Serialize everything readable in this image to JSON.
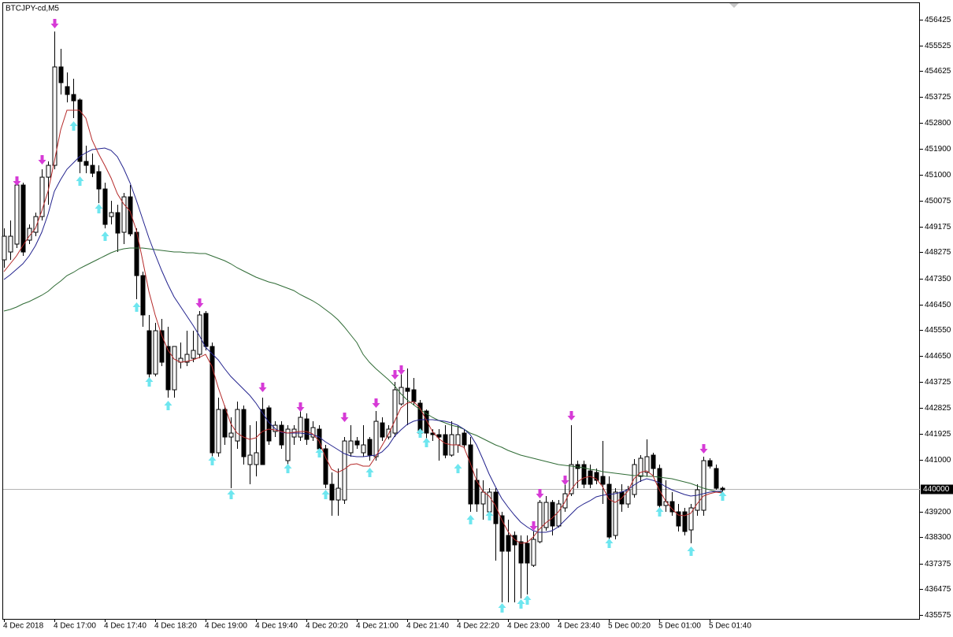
{
  "chart_data": {
    "type": "candlestick",
    "title": "BTCJPY-cd,M5",
    "categories": [
      "4 Dec 2018",
      null,
      null,
      null,
      null,
      null,
      null,
      null,
      "4 Dec 17:00",
      null,
      null,
      null,
      null,
      null,
      null,
      null,
      "4 Dec 17:40",
      null,
      null,
      null,
      null,
      null,
      null,
      null,
      "4 Dec 18:20",
      null,
      null,
      null,
      null,
      null,
      null,
      null,
      "4 Dec 19:00",
      null,
      null,
      null,
      null,
      null,
      null,
      null,
      "4 Dec 19:40",
      null,
      null,
      null,
      null,
      null,
      null,
      null,
      "4 Dec 20:20",
      null,
      null,
      null,
      null,
      null,
      null,
      null,
      "4 Dec 21:00",
      null,
      null,
      null,
      null,
      null,
      null,
      null,
      "4 Dec 21:40",
      null,
      null,
      null,
      null,
      null,
      null,
      null,
      "4 Dec 22:20",
      null,
      null,
      null,
      null,
      null,
      null,
      null,
      "4 Dec 23:00",
      null,
      null,
      null,
      null,
      null,
      null,
      null,
      "4 Dec 23:40",
      null,
      null,
      null,
      null,
      null,
      null,
      null,
      "5 Dec 00:20",
      null,
      null,
      null,
      null,
      null,
      null,
      null,
      "5 Dec 01:00",
      null,
      null,
      null,
      null,
      null,
      null,
      null,
      "5 Dec 01:40",
      null,
      null
    ],
    "open": [
      448013,
      448288,
      448564,
      450633,
      448702,
      448978,
      449529,
      450908,
      451322,
      454770,
      454080,
      453804,
      453612,
      451460,
      451322,
      451102,
      450495,
      449529,
      449667,
      448978,
      450219,
      448978,
      447461,
      445530,
      444013,
      445530,
      444979,
      443462,
      444427,
      444427,
      444565,
      444703,
      446137,
      444979,
      441256,
      442772,
      441807,
      441669,
      442772,
      440842,
      440842,
      442772,
      442828,
      442000,
      442220,
      440980,
      441807,
      441807,
      442441,
      441807,
      442083,
      441394,
      440152,
      439601,
      439601,
      441256,
      441669,
      441256,
      441724,
      441118,
      442303,
      441807,
      441945,
      442965,
      443517,
      443462,
      442993,
      442717,
      441945,
      441890,
      441890,
      441173,
      441531,
      441945,
      441531,
      440290,
      439463,
      439187,
      439877,
      439049,
      438360,
      438360,
      438139,
      438084,
      437312,
      438139,
      438636,
      439518,
      438691,
      439325,
      439821,
      440842,
      440842,
      440621,
      440566,
      440428,
      440152,
      438360,
      439877,
      439463,
      439794,
      440428,
      440566,
      441173,
      440704,
      439408,
      439546,
      439187,
      439187,
      438553,
      439242,
      439242,
      440980,
      440704,
      440014
    ],
    "high": [
      449116,
      449392,
      450908,
      450715,
      449254,
      449667,
      451184,
      451460,
      456011,
      455404,
      454577,
      454356,
      453667,
      452012,
      451736,
      451322,
      450715,
      450081,
      449943,
      450357,
      450633,
      449116,
      447599,
      446082,
      445806,
      445944,
      445668,
      444841,
      445117,
      445530,
      445530,
      446220,
      446220,
      445117,
      443186,
      442910,
      442496,
      443048,
      442910,
      442220,
      442358,
      443186,
      442910,
      442358,
      442358,
      442220,
      442220,
      442717,
      442634,
      442358,
      442220,
      441531,
      440566,
      440704,
      441807,
      442220,
      441807,
      442220,
      441807,
      442717,
      442496,
      442220,
      443738,
      444151,
      444206,
      443875,
      443103,
      442772,
      442083,
      442083,
      442220,
      442358,
      442220,
      442083,
      441807,
      440704,
      440290,
      440014,
      440014,
      439187,
      438911,
      438498,
      438360,
      438360,
      438498,
      439601,
      439739,
      439601,
      439601,
      440290,
      442220,
      440980,
      440980,
      440842,
      440704,
      441669,
      440428,
      440014,
      440152,
      440097,
      441035,
      441173,
      441724,
      441256,
      440842,
      440290,
      439877,
      439463,
      439325,
      439463,
      440152,
      441118,
      441063,
      440842,
      440069
    ],
    "low": [
      447737,
      448013,
      448426,
      448150,
      448564,
      448840,
      449392,
      449943,
      451184,
      453804,
      453529,
      452977,
      451046,
      451046,
      450908,
      449998,
      449116,
      449254,
      448288,
      448564,
      448840,
      446634,
      445668,
      443875,
      443930,
      444289,
      443186,
      443186,
      444206,
      444289,
      444427,
      444565,
      444841,
      441118,
      441118,
      441531,
      440014,
      441394,
      440842,
      440152,
      440428,
      440842,
      441531,
      441807,
      441394,
      440842,
      441531,
      441669,
      441531,
      441669,
      441173,
      440014,
      439049,
      439049,
      439463,
      441118,
      441394,
      441118,
      440980,
      440980,
      441669,
      441724,
      441807,
      442910,
      442220,
      442910,
      441807,
      441669,
      441669,
      440980,
      441063,
      441118,
      441256,
      441394,
      439187,
      439187,
      438911,
      438911,
      437477,
      436015,
      436015,
      436015,
      436153,
      436291,
      437256,
      438084,
      438525,
      438360,
      438636,
      439187,
      439739,
      440014,
      440014,
      440014,
      440152,
      439463,
      438222,
      438222,
      439187,
      439325,
      439683,
      440235,
      440428,
      440428,
      439325,
      439187,
      439049,
      438498,
      438360,
      438084,
      439049,
      439049,
      440704,
      439959,
      439877
    ],
    "close": [
      448840,
      448840,
      450633,
      448288,
      449116,
      449529,
      450908,
      451322,
      454770,
      454218,
      453804,
      453584,
      451460,
      451322,
      451046,
      450495,
      449254,
      449667,
      448950,
      450219,
      448923,
      447461,
      446082,
      444013,
      445530,
      444427,
      443462,
      444979,
      444565,
      444703,
      444841,
      446082,
      444979,
      441256,
      442772,
      441807,
      441945,
      442772,
      441118,
      441173,
      441256,
      440842,
      441669,
      442220,
      441531,
      442083,
      442083,
      442496,
      441724,
      442138,
      441394,
      440152,
      439601,
      440014,
      441669,
      441669,
      441531,
      441531,
      441173,
      442358,
      441807,
      442083,
      443462,
      443545,
      443407,
      443048,
      441945,
      441945,
      441890,
      441807,
      441173,
      441890,
      441890,
      441531,
      439463,
      439463,
      439877,
      439877,
      438773,
      437808,
      437808,
      438029,
      437394,
      437394,
      438222,
      439518,
      439518,
      438691,
      439463,
      439821,
      440842,
      440704,
      440152,
      440152,
      440290,
      440152,
      438305,
      439877,
      439463,
      439959,
      440842,
      441063,
      441118,
      440704,
      439408,
      439546,
      439187,
      438691,
      438498,
      439325,
      439959,
      440980,
      440787,
      440014,
      439959
    ],
    "up_color": "#ffffff",
    "down_color": "#000000",
    "lines": [
      {
        "color": "#2f6b35",
        "values": [
          446220,
          446275,
          446358,
          446468,
          446551,
          446661,
          446771,
          446909,
          447102,
          447268,
          447461,
          447571,
          447709,
          447820,
          447930,
          448040,
          448150,
          448261,
          448344,
          448399,
          448426,
          448426,
          448426,
          448399,
          448371,
          448344,
          448316,
          448288,
          448288,
          448261,
          448261,
          448233,
          448233,
          448150,
          448068,
          447985,
          447875,
          447737,
          447626,
          447516,
          447406,
          447323,
          447240,
          447185,
          447102,
          447020,
          446937,
          446799,
          446689,
          446578,
          446441,
          446275,
          446110,
          445917,
          445668,
          445392,
          445117,
          444703,
          444427,
          444207,
          444013,
          443820,
          443600,
          443324,
          443103,
          442938,
          442772,
          442634,
          442497,
          442386,
          442304,
          442221,
          442166,
          442083,
          441945,
          441862,
          441752,
          441642,
          441531,
          441449,
          441338,
          441255,
          441173,
          441118,
          441062,
          441007,
          440952,
          440897,
          440842,
          440814,
          440787,
          440759,
          440731,
          440676,
          440649,
          440594,
          440566,
          440538,
          440511,
          440483,
          440456,
          440456,
          440428,
          440428,
          440401,
          440373,
          440345,
          440290,
          440235,
          440180,
          440097,
          440014,
          439959,
          439904,
          439876
        ]
      },
      {
        "color": "#23238e",
        "values": [
          447323,
          447489,
          447682,
          447875,
          448150,
          448509,
          448978,
          449612,
          450412,
          450826,
          451184,
          451405,
          451626,
          451763,
          451874,
          451901,
          451929,
          451846,
          451626,
          451212,
          450715,
          450109,
          449447,
          448785,
          448206,
          447654,
          447158,
          446716,
          446385,
          446054,
          445723,
          445365,
          444951,
          444731,
          444510,
          444207,
          443931,
          443710,
          443489,
          443269,
          442993,
          442662,
          442331,
          442110,
          441973,
          441945,
          441945,
          441945,
          441917,
          441890,
          441807,
          441642,
          441504,
          441366,
          441228,
          441145,
          441118,
          441118,
          441145,
          441173,
          441283,
          441504,
          441835,
          442055,
          442248,
          442359,
          442414,
          442414,
          442414,
          442386,
          442359,
          442304,
          442221,
          442083,
          441890,
          441531,
          441035,
          440511,
          440070,
          439656,
          439352,
          439077,
          438828,
          438663,
          438525,
          438470,
          438470,
          438525,
          438663,
          438884,
          439104,
          439325,
          439463,
          439573,
          439711,
          439766,
          439794,
          439821,
          439876,
          439959,
          440125,
          440263,
          440345,
          440290,
          440207,
          440070,
          439959,
          439876,
          439794,
          439739,
          439766,
          439821,
          439876,
          439904,
          439904
        ]
      },
      {
        "color": "#b52a2a",
        "values": [
          447599,
          447875,
          448150,
          448509,
          448840,
          449116,
          449723,
          450412,
          451460,
          452563,
          453253,
          453253,
          453253,
          452977,
          452205,
          451736,
          451322,
          450881,
          450329,
          449971,
          449723,
          449061,
          448013,
          446909,
          446082,
          445392,
          444868,
          444538,
          444427,
          444455,
          444510,
          444593,
          444703,
          444289,
          443545,
          442910,
          442276,
          441945,
          441807,
          441724,
          441780,
          442000,
          442083,
          442055,
          442000,
          441945,
          441973,
          442000,
          442000,
          441917,
          441669,
          441118,
          440676,
          440566,
          440676,
          440842,
          440869,
          440787,
          440787,
          441118,
          441504,
          441890,
          442359,
          442828,
          442993,
          443048,
          442828,
          442414,
          442000,
          441752,
          441587,
          441531,
          441531,
          441449,
          440897,
          440290,
          439904,
          439739,
          439408,
          438911,
          438498,
          438222,
          438084,
          438111,
          438304,
          438580,
          438801,
          438966,
          439187,
          439518,
          439959,
          440235,
          440373,
          440428,
          440345,
          440070,
          439628,
          439518,
          439656,
          439904,
          440345,
          440566,
          440621,
          440456,
          439959,
          439573,
          439297,
          439077,
          439049,
          439132,
          439463,
          439739,
          439821,
          439876,
          439849
        ]
      }
    ],
    "down_arrows": {
      "color": "#d63ad6",
      "values": [
        null,
        null,
        450771,
        null,
        null,
        null,
        451515,
        null,
        456287,
        null,
        null,
        null,
        null,
        null,
        null,
        null,
        null,
        null,
        null,
        null,
        null,
        null,
        null,
        null,
        null,
        null,
        null,
        null,
        null,
        null,
        null,
        446496,
        null,
        null,
        null,
        null,
        null,
        null,
        null,
        null,
        null,
        443545,
        null,
        null,
        null,
        null,
        null,
        442855,
        null,
        null,
        null,
        null,
        null,
        null,
        442497,
        null,
        null,
        null,
        null,
        442993,
        null,
        null,
        443986,
        444151,
        null,
        null,
        null,
        null,
        null,
        null,
        null,
        null,
        null,
        null,
        null,
        null,
        null,
        null,
        null,
        null,
        null,
        null,
        null,
        null,
        438691,
        439821,
        null,
        null,
        null,
        440290,
        442552,
        null,
        null,
        null,
        null,
        null,
        null,
        null,
        null,
        null,
        null,
        null,
        null,
        null,
        null,
        null,
        null,
        null,
        null,
        null,
        null,
        441394,
        null,
        null,
        null
      ]
    },
    "up_arrows": {
      "color": "#6ee6ef",
      "values": [
        null,
        null,
        null,
        null,
        null,
        null,
        null,
        null,
        null,
        null,
        null,
        452701,
        450771,
        null,
        null,
        449805,
        448840,
        null,
        null,
        null,
        null,
        446358,
        null,
        443738,
        null,
        null,
        442910,
        null,
        null,
        null,
        null,
        null,
        null,
        440980,
        null,
        null,
        439794,
        null,
        null,
        null,
        null,
        null,
        null,
        null,
        null,
        440704,
        null,
        null,
        null,
        null,
        441256,
        439794,
        null,
        null,
        null,
        null,
        null,
        null,
        440566,
        null,
        null,
        null,
        null,
        null,
        null,
        null,
        441945,
        441614,
        null,
        null,
        null,
        null,
        440704,
        null,
        438911,
        null,
        null,
        439049,
        null,
        435822,
        null,
        null,
        435960,
        436098,
        null,
        null,
        null,
        null,
        null,
        null,
        null,
        null,
        null,
        null,
        null,
        null,
        438084,
        null,
        null,
        null,
        null,
        null,
        null,
        null,
        439187,
        null,
        null,
        null,
        null,
        437808,
        null,
        null,
        null,
        null,
        439739
      ]
    },
    "current_price": 440000,
    "ylim": [
      435437,
      457114
    ],
    "yticks": [
      456425,
      455525,
      454625,
      453725,
      452800,
      451900,
      451000,
      450075,
      449175,
      448275,
      447350,
      446450,
      445550,
      444650,
      443725,
      442825,
      441925,
      441000,
      439200,
      438300,
      437375,
      436475,
      435575
    ],
    "grid": false
  }
}
